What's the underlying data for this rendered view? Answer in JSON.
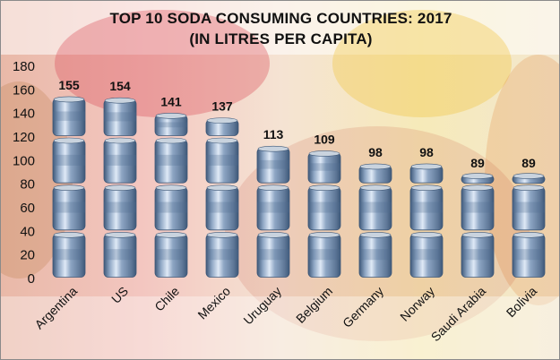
{
  "chart_data": {
    "type": "bar",
    "title": "TOP 10 SODA CONSUMING COUNTRIES: 2017",
    "subtitle": "(IN LITRES PER CAPITA)",
    "categories": [
      "Argentina",
      "US",
      "Chile",
      "Mexico",
      "Uruguay",
      "Belgium",
      "Germany",
      "Norway",
      "Saudi Arabia",
      "Bolivia"
    ],
    "values": [
      155,
      154,
      141,
      137,
      113,
      109,
      98,
      98,
      89,
      89
    ],
    "data_labels": [
      "155",
      "154",
      "141",
      "137",
      "113",
      "109",
      "98",
      "98",
      "89",
      "89"
    ],
    "ylim": [
      0,
      180
    ],
    "yticks": [
      0,
      20,
      40,
      60,
      80,
      100,
      120,
      140,
      160,
      180
    ],
    "unit_per_icon": 40,
    "grid": false,
    "legend": "none",
    "colors": {
      "can_body": "#8ea6c4",
      "can_highlight": "#dfe9f6",
      "can_shadow": "#3e5878",
      "rim": "#c9d3de",
      "text": "#111111"
    }
  }
}
